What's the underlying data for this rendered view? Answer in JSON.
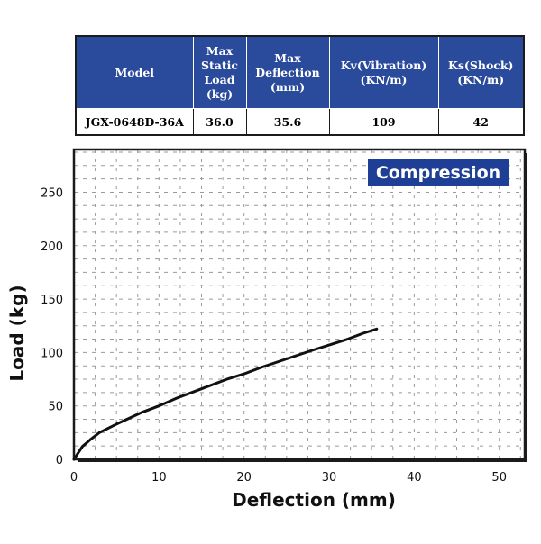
{
  "spec_table": {
    "headers": [
      "Model",
      "Max\nStatic\nLoad\n(kg)",
      "Max\nDeflection\n(mm)",
      "Kv(Vibration)\n(KN/m)",
      "Ks(Shock)\n(KN/m)"
    ],
    "row": [
      "JGX-0648D-36A",
      "36.0",
      "35.6",
      "109",
      "42"
    ]
  },
  "chart_data": {
    "type": "line",
    "title": "Compression",
    "xlabel": "Deflection (mm)",
    "ylabel": "Load (kg)",
    "xlim": [
      0,
      53
    ],
    "ylim": [
      0,
      290
    ],
    "xticks": [
      0,
      10,
      20,
      30,
      40,
      50
    ],
    "yticks": [
      0,
      50,
      100,
      150,
      200,
      250
    ],
    "grid": true,
    "series": [
      {
        "x": [
          0,
          1,
          2,
          3,
          5,
          8,
          10,
          12,
          15,
          18,
          20,
          22,
          25,
          28,
          30,
          32,
          34,
          35.6
        ],
        "y": [
          0,
          12,
          19,
          25,
          33,
          44,
          50,
          57,
          66,
          75,
          80,
          86,
          94,
          102,
          107,
          112,
          118,
          122
        ]
      }
    ],
    "colors": {
      "curve": "#111111",
      "badge": "#1f3f96",
      "grid": "#9a9a9a",
      "frame": "#1b1b1b"
    }
  }
}
